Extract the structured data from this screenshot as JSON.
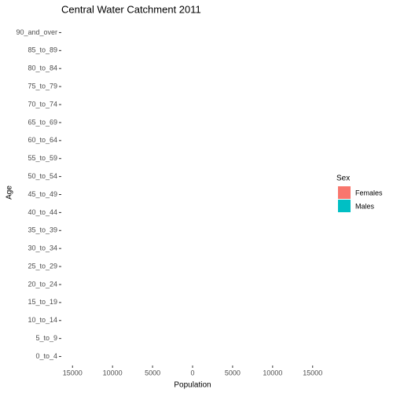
{
  "chart_data": {
    "type": "bar",
    "orientation": "horizontal",
    "title": "Central Water Catchment  2011",
    "x_label": "Population",
    "y_label": "Age",
    "legend_title": "Sex",
    "categories": [
      "0_to_4",
      "5_to_9",
      "10_to_14",
      "15_to_19",
      "20_to_24",
      "25_to_29",
      "30_to_34",
      "35_to_39",
      "40_to_44",
      "45_to_49",
      "50_to_54",
      "55_to_59",
      "60_to_64",
      "65_to_69",
      "70_to_74",
      "75_to_79",
      "80_to_84",
      "85_to_89",
      "90_and_over"
    ],
    "series": [
      {
        "name": "Females",
        "color": "#F8766D",
        "values": [
          null,
          null,
          null,
          null,
          null,
          null,
          null,
          null,
          null,
          null,
          null,
          null,
          null,
          null,
          null,
          null,
          null,
          null,
          null
        ]
      },
      {
        "name": "Males",
        "color": "#00BFC4",
        "values": [
          null,
          null,
          null,
          null,
          null,
          null,
          null,
          null,
          null,
          null,
          null,
          null,
          null,
          null,
          null,
          null,
          null,
          null,
          null
        ]
      }
    ],
    "xlim": [
      -16400,
      16400
    ],
    "xticks": [
      {
        "value": -15000,
        "label": "15000"
      },
      {
        "value": -10000,
        "label": "10000"
      },
      {
        "value": -5000,
        "label": "5000"
      },
      0,
      5000,
      10000,
      15000
    ],
    "grid": false,
    "legend": "right"
  }
}
